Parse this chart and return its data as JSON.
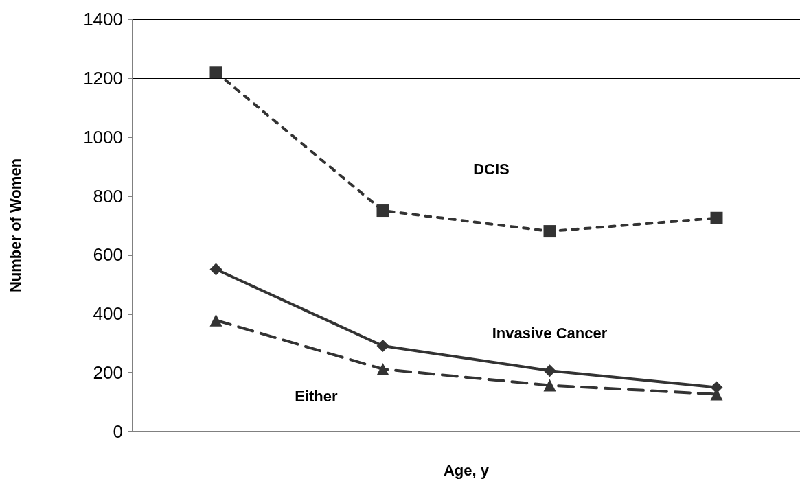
{
  "chart_data": {
    "type": "line",
    "xlabel": "Age, y",
    "ylabel": "Number of Women",
    "categories": [
      null,
      null,
      null,
      null
    ],
    "series": [
      {
        "name": "DCIS",
        "color": "#333333",
        "values": [
          1220,
          750,
          680,
          725
        ],
        "marker": "square",
        "line_style": "dotted"
      },
      {
        "name": "Invasive Cancer",
        "color": "#333333",
        "values": [
          551,
          291,
          207,
          150
        ],
        "marker": "diamond",
        "line_style": "solid"
      },
      {
        "name": "Either",
        "color": "#333333",
        "values": [
          378,
          212,
          157,
          127
        ],
        "marker": "triangle",
        "line_style": "dashed"
      }
    ],
    "ylim": [
      0,
      1400
    ],
    "yticks": [
      0,
      200,
      400,
      600,
      800,
      1000,
      1200,
      1400
    ],
    "grid": "y",
    "legend": false
  }
}
